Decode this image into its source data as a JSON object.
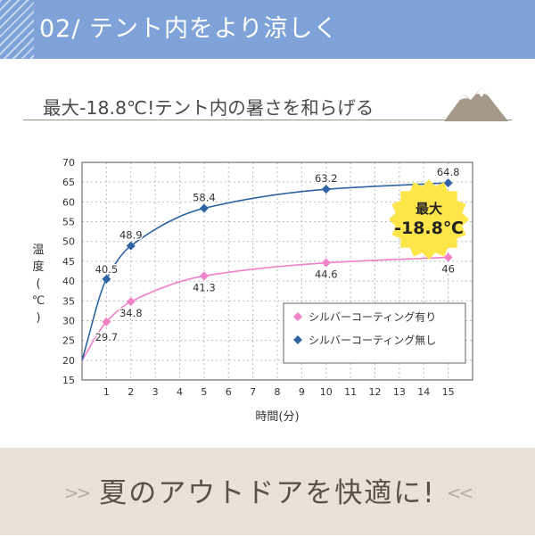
{
  "header": {
    "title": "02/ テント内をより涼しく"
  },
  "subtitle": "最大-18.8℃!テント内の暑さを和らげる",
  "badge": {
    "line1": "最大",
    "line2": "-18.8℃",
    "color": "#fde54a"
  },
  "footer": {
    "left_deco": ">>",
    "text": "夏のアウトドアを快適に!",
    "right_deco": "<<"
  },
  "colors": {
    "header_bg": "#7fa3d9",
    "series_with": "#f080c8",
    "series_without": "#2f64a4",
    "footer_bg": "#e8e2d8"
  },
  "chart_data": {
    "type": "line",
    "title": "",
    "xlabel": "時間(分)",
    "ylabel_chars": [
      "温",
      "度",
      "(",
      "℃",
      ")"
    ],
    "xlim": [
      0,
      16
    ],
    "ylim": [
      15,
      70
    ],
    "x_ticks": [
      1,
      2,
      3,
      4,
      5,
      6,
      7,
      8,
      9,
      10,
      11,
      12,
      13,
      14,
      15
    ],
    "y_ticks": [
      15,
      20,
      25,
      30,
      35,
      40,
      45,
      50,
      55,
      60,
      65,
      70
    ],
    "grid": true,
    "legend_position": "bottom-right",
    "series": [
      {
        "name": "シルバーコーティング有り",
        "color": "#f080c8",
        "marker": "diamond",
        "points": [
          [
            0,
            20
          ],
          [
            1,
            29.7
          ],
          [
            2,
            34.8
          ],
          [
            5,
            41.3
          ],
          [
            10,
            44.6
          ],
          [
            15,
            46
          ]
        ],
        "labels": [
          {
            "x": 1,
            "text": "29.7"
          },
          {
            "x": 2,
            "text": "34.8"
          },
          {
            "x": 5,
            "text": "41.3"
          },
          {
            "x": 10,
            "text": "44.6"
          },
          {
            "x": 15,
            "text": "46"
          }
        ]
      },
      {
        "name": "シルバーコーティング無し",
        "color": "#2f64a4",
        "marker": "diamond",
        "points": [
          [
            0,
            20
          ],
          [
            1,
            40.5
          ],
          [
            2,
            48.9
          ],
          [
            5,
            58.4
          ],
          [
            10,
            63.2
          ],
          [
            15,
            64.8
          ]
        ],
        "labels": [
          {
            "x": 1,
            "text": "40.5"
          },
          {
            "x": 2,
            "text": "48.9"
          },
          {
            "x": 5,
            "text": "58.4"
          },
          {
            "x": 10,
            "text": "63.2"
          },
          {
            "x": 15,
            "text": "64.8"
          }
        ]
      }
    ]
  }
}
